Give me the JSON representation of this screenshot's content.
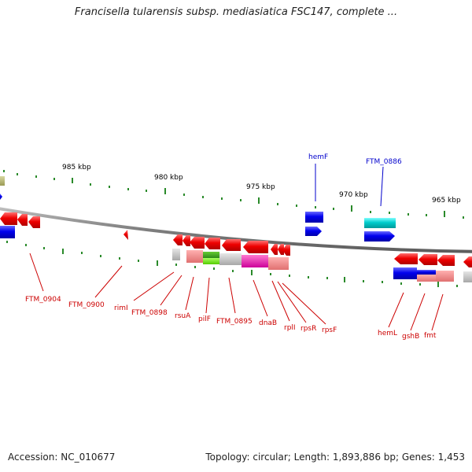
{
  "title": "Francisella tularensis subsp. mediasiatica FSC147, complete ...",
  "footer": {
    "accession": "Accession: NC_010677",
    "summary": "Topology: circular; Length: 1,893,886 bp; Genes: 1,453"
  },
  "scale_labels": [
    "985 kbp",
    "980 kbp",
    "975 kbp",
    "970 kbp",
    "965 kbp"
  ],
  "top_labels": [
    "hemF",
    "FTM_0886"
  ],
  "bottom_labels": [
    "FTM_0904",
    "FTM_0900",
    "rimI",
    "FTM_0898",
    "rsuA",
    "pilF",
    "FTM_0895",
    "dnaB",
    "rplI",
    "rpsR",
    "rpsF",
    "hemL",
    "gshB",
    "fmt"
  ],
  "colors": {
    "forward_gene": "#0000ee",
    "reverse_gene": "#ee0000",
    "highlight_gene": "#00cccc",
    "label_blue": "#0000cc",
    "label_red": "#cc0000",
    "tick_green": "#2a8a2a",
    "backbone": "#808080"
  }
}
